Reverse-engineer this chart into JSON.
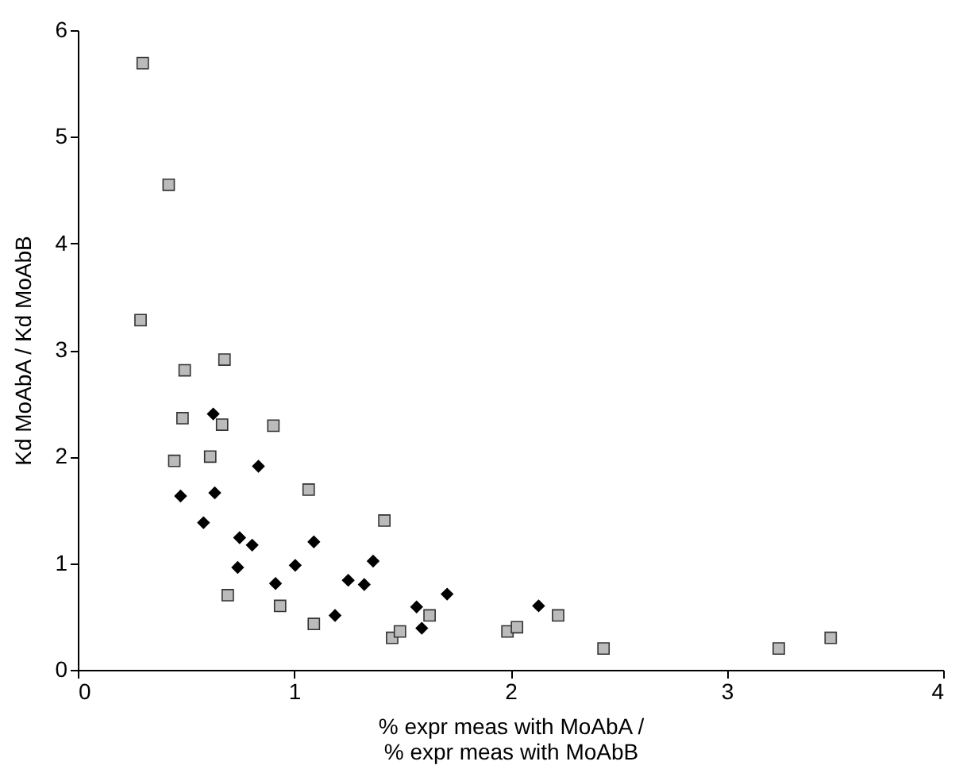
{
  "chart_data": {
    "type": "scatter",
    "xlabel": [
      "% expr meas with MoAbA /",
      "% expr meas with MoAbB"
    ],
    "ylabel": "Kd MoAbA / Kd MoAbB",
    "xlim": [
      0,
      4
    ],
    "xticks": [
      0,
      1,
      2,
      3,
      4
    ],
    "ylim": [
      0,
      6
    ],
    "yticks": [
      0,
      1,
      2,
      3,
      4,
      5,
      6
    ],
    "grid": false,
    "series": [
      {
        "color": "#bbbbbb",
        "marker": "square",
        "x": [
          0.3,
          0.42,
          0.29,
          0.494,
          0.678,
          0.484,
          0.667,
          0.904,
          0.446,
          0.612,
          1.067,
          1.417,
          0.693,
          0.935,
          1.091,
          1.453,
          1.489,
          1.626,
          1.986,
          2.03,
          2.22,
          2.43,
          3.24,
          3.48
        ],
        "values": [
          5.69,
          4.55,
          3.28,
          2.81,
          2.91,
          2.36,
          2.3,
          2.29,
          1.96,
          2.0,
          1.69,
          1.4,
          0.7,
          0.6,
          0.43,
          0.3,
          0.36,
          0.51,
          0.36,
          0.4,
          0.51,
          0.2,
          0.2,
          0.3
        ]
      },
      {
        "color": "#000000",
        "marker": "diamond",
        "x": [
          0.626,
          0.835,
          0.475,
          0.633,
          0.581,
          0.748,
          0.806,
          1.091,
          0.739,
          0.914,
          1.005,
          1.25,
          1.324,
          1.365,
          1.189,
          1.566,
          1.59,
          1.707,
          2.13
        ],
        "values": [
          2.4,
          1.91,
          1.63,
          1.66,
          1.38,
          1.24,
          1.17,
          1.2,
          0.96,
          0.81,
          0.98,
          0.84,
          0.8,
          1.02,
          0.51,
          0.59,
          0.39,
          0.71,
          0.6
        ]
      }
    ]
  }
}
